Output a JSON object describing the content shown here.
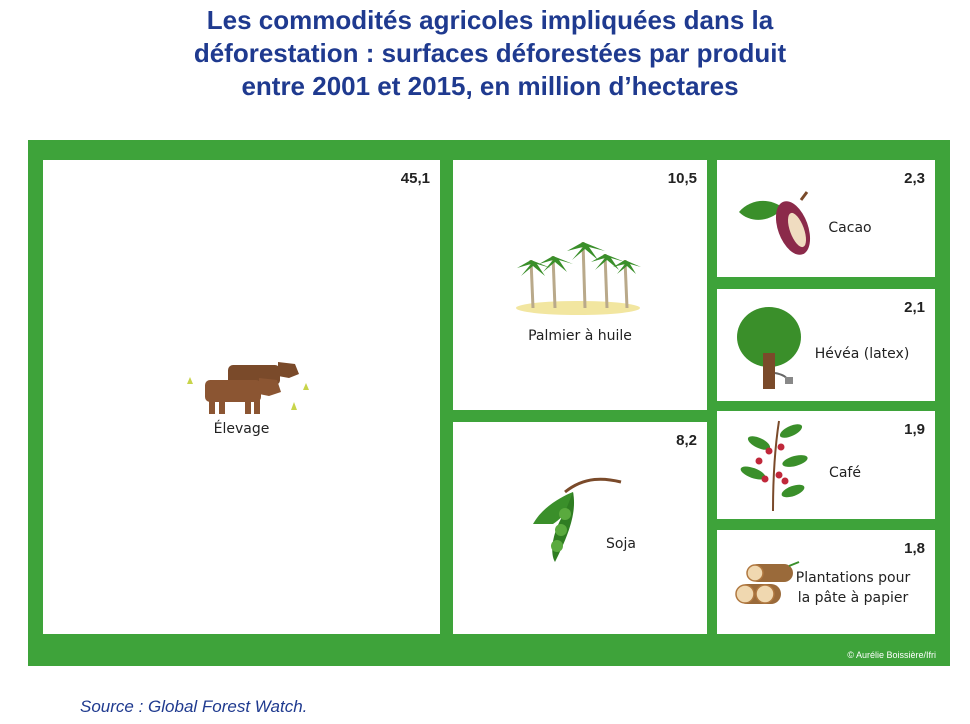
{
  "title_lines": [
    "Les commodités agricoles impliquées dans la",
    "déforestation : surfaces déforestées par produit",
    "entre 2001 et 2015, en million d’hectares"
  ],
  "chart_data": {
    "type": "treemap",
    "unit": "million d’hectares",
    "items": [
      {
        "label": "Élevage",
        "value": 45.1,
        "value_text": "45,1",
        "icon": "cattle-icon"
      },
      {
        "label": "Palmier à huile",
        "value": 10.5,
        "value_text": "10,5",
        "icon": "palm-trees-icon"
      },
      {
        "label": "Soja",
        "value": 8.2,
        "value_text": "8,2",
        "icon": "soy-pod-icon"
      },
      {
        "label": "Cacao",
        "value": 2.3,
        "value_text": "2,3",
        "icon": "cocoa-pod-icon"
      },
      {
        "label": "Hévéa (latex)",
        "value": 2.1,
        "value_text": "2,1",
        "icon": "rubber-tree-icon"
      },
      {
        "label": "Café",
        "value": 1.9,
        "value_text": "1,9",
        "icon": "coffee-branch-icon"
      },
      {
        "label": "Plantations pour la pâte à papier",
        "label_lines": [
          "Plantations pour",
          "la pâte à papier"
        ],
        "value": 1.8,
        "value_text": "1,8",
        "icon": "logs-icon"
      }
    ]
  },
  "credit": "© Aurélie Boissière/Ifri",
  "source": "Source : Global Forest Watch.",
  "colors": {
    "frame": "#3ea33a",
    "title": "#1f3a8f",
    "brown": "#7a4a2a",
    "leaf": "#3a8f2a",
    "cocoa": "#8b2a4a",
    "berry": "#c0283a",
    "sand": "#f2e6a0"
  }
}
